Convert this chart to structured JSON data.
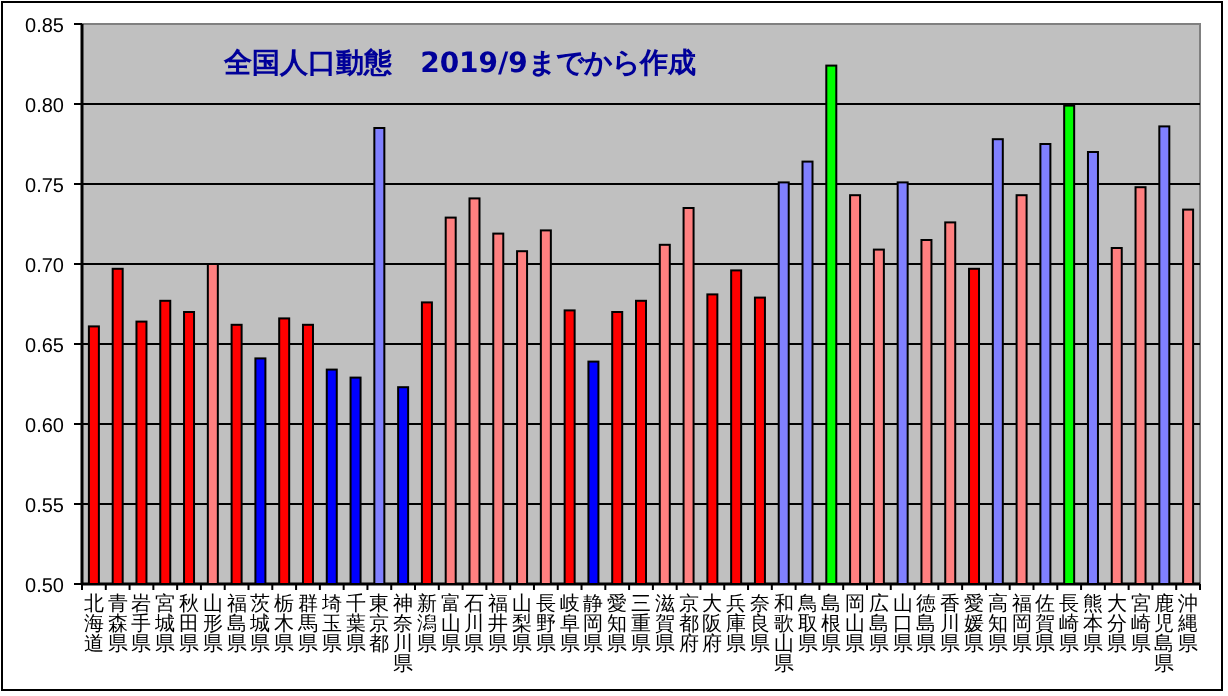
{
  "chart_data": {
    "type": "bar",
    "title": "全国人口動態　2019/9までから作成",
    "categories": [
      "北海道",
      "青森県",
      "岩手県",
      "宮城県",
      "秋田県",
      "山形県",
      "福島県",
      "茨城県",
      "栃木県",
      "群馬県",
      "埼玉県",
      "千葉県",
      "東京都",
      "神奈川県",
      "新潟県",
      "富山県",
      "石川県",
      "福井県",
      "山梨県",
      "長野県",
      "岐阜県",
      "静岡県",
      "愛知県",
      "三重県",
      "滋賀県",
      "京都府",
      "大阪府",
      "兵庫県",
      "奈良県",
      "和歌山県",
      "鳥取県",
      "島根県",
      "岡山県",
      "広島県",
      "山口県",
      "徳島県",
      "香川県",
      "愛媛県",
      "高知県",
      "福岡県",
      "佐賀県",
      "長崎県",
      "熊本県",
      "大分県",
      "宮崎県",
      "鹿児島県",
      "沖縄県"
    ],
    "values": [
      0.661,
      0.697,
      0.664,
      0.677,
      0.67,
      0.7,
      0.662,
      0.641,
      0.666,
      0.662,
      0.634,
      0.629,
      0.785,
      0.623,
      0.676,
      0.729,
      0.741,
      0.719,
      0.708,
      0.721,
      0.671,
      0.639,
      0.67,
      0.677,
      0.712,
      0.735,
      0.681,
      0.696,
      0.679,
      0.751,
      0.764,
      0.824,
      0.743,
      0.709,
      0.751,
      0.715,
      0.726,
      0.697,
      0.778,
      0.743,
      0.775,
      0.799,
      0.77,
      0.71,
      0.748,
      0.786,
      0.734
    ],
    "colors": [
      "#ff0000",
      "#ff0000",
      "#ff0000",
      "#ff0000",
      "#ff0000",
      "#ff8080",
      "#ff0000",
      "#0000ff",
      "#ff0000",
      "#ff0000",
      "#0000ff",
      "#0000ff",
      "#8080ff",
      "#0000ff",
      "#ff0000",
      "#ff8080",
      "#ff8080",
      "#ff8080",
      "#ff8080",
      "#ff8080",
      "#ff0000",
      "#0000ff",
      "#ff0000",
      "#ff0000",
      "#ff8080",
      "#ff8080",
      "#ff0000",
      "#ff0000",
      "#ff0000",
      "#8080ff",
      "#8080ff",
      "#00ff00",
      "#ff8080",
      "#ff8080",
      "#8080ff",
      "#ff8080",
      "#ff8080",
      "#ff0000",
      "#8080ff",
      "#ff8080",
      "#8080ff",
      "#00ff00",
      "#8080ff",
      "#ff8080",
      "#ff8080",
      "#8080ff",
      "#ff8080"
    ],
    "ylim": [
      0.5,
      0.85
    ],
    "yticks": [
      {
        "value": 0.5,
        "label": "0.50"
      },
      {
        "value": 0.55,
        "label": "0.55"
      },
      {
        "value": 0.6,
        "label": "0.60"
      },
      {
        "value": 0.65,
        "label": "0.65"
      },
      {
        "value": 0.7,
        "label": "0.70"
      },
      {
        "value": 0.75,
        "label": "0.75"
      },
      {
        "value": 0.8,
        "label": "0.80"
      },
      {
        "value": 0.85,
        "label": "0.85"
      }
    ],
    "grid": "y"
  }
}
